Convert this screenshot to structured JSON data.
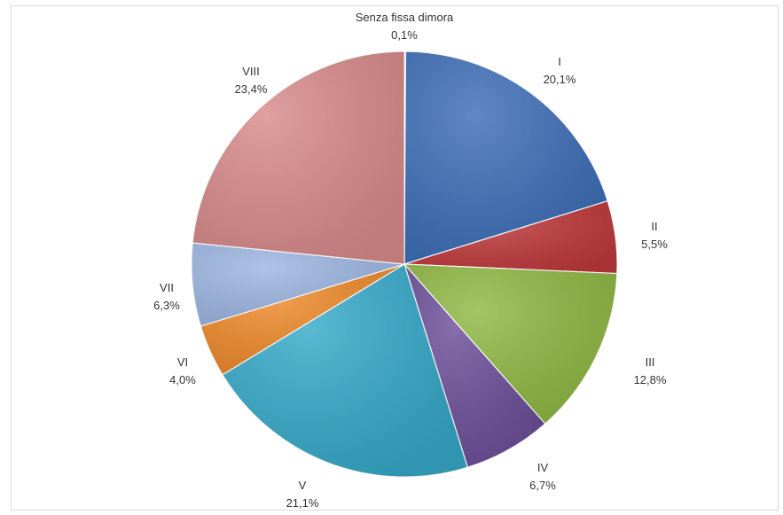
{
  "chart_data": {
    "type": "pie",
    "title": "",
    "slices": [
      {
        "label": "Senza fissa dimora",
        "value": 0.1,
        "value_label": "0,1%",
        "color": "#a6a6a6"
      },
      {
        "label": "I",
        "value": 20.1,
        "value_label": "20,1%",
        "color": "#3d6eb8"
      },
      {
        "label": "II",
        "value": 5.5,
        "value_label": "5,5%",
        "color": "#c0393b"
      },
      {
        "label": "III",
        "value": 12.8,
        "value_label": "12,8%",
        "color": "#8fb842"
      },
      {
        "label": "IV",
        "value": 6.7,
        "value_label": "6,7%",
        "color": "#6c4f9a"
      },
      {
        "label": "V",
        "value": 21.1,
        "value_label": "21,1%",
        "color": "#35a9c9"
      },
      {
        "label": "VI",
        "value": 4.0,
        "value_label": "4,0%",
        "color": "#ef8a2a"
      },
      {
        "label": "VII",
        "value": 6.3,
        "value_label": "6,3%",
        "color": "#9db6e2"
      },
      {
        "label": "VIII",
        "value": 23.4,
        "value_label": "23,4%",
        "color": "#d98b8b"
      }
    ],
    "start_direction": "top",
    "order": "clockwise",
    "legend": "none"
  }
}
